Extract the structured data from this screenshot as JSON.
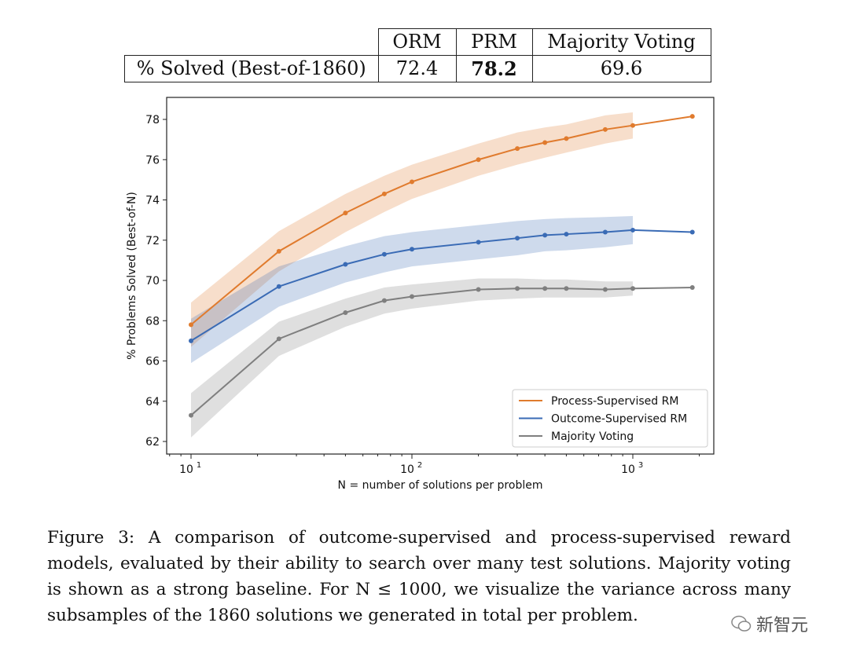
{
  "table": {
    "headers": [
      "",
      "ORM",
      "PRM",
      "Majority Voting"
    ],
    "row": {
      "label": "% Solved (Best-of-1860)",
      "values": [
        "72.4",
        "78.2",
        "69.6"
      ],
      "bold_index": 1
    }
  },
  "chart_data": {
    "type": "line",
    "xlabel": "N = number of solutions per problem",
    "ylabel": "% Problems Solved (Best-of-N)",
    "xscale": "log",
    "xlim": [
      8,
      2600
    ],
    "ylim": [
      61.5,
      78.9
    ],
    "xticks": [
      {
        "value": 10,
        "label": "10",
        "exp": "1"
      },
      {
        "value": 100,
        "label": "10",
        "exp": "2"
      },
      {
        "value": 1000,
        "label": "10",
        "exp": "3"
      }
    ],
    "yticks": [
      62,
      64,
      66,
      68,
      70,
      72,
      74,
      76,
      78
    ],
    "legend": "lower-right",
    "grid": false,
    "x": [
      10,
      25,
      50,
      75,
      100,
      200,
      300,
      400,
      500,
      750,
      1000,
      1860
    ],
    "series": [
      {
        "name": "Process-Supervised RM",
        "color": "#e07b2e",
        "values": [
          67.8,
          71.45,
          73.35,
          74.3,
          74.9,
          76.0,
          76.55,
          76.85,
          77.05,
          77.5,
          77.7,
          78.15
        ],
        "band_halfwidth": [
          1.1,
          1.0,
          0.95,
          0.9,
          0.85,
          0.8,
          0.8,
          0.75,
          0.7,
          0.7,
          0.65,
          null
        ]
      },
      {
        "name": "Outcome-Supervised RM",
        "color": "#3a6bb5",
        "values": [
          67.0,
          69.7,
          70.8,
          71.3,
          71.55,
          71.9,
          72.1,
          72.25,
          72.3,
          72.4,
          72.5,
          72.4
        ],
        "band_halfwidth": [
          1.1,
          1.0,
          0.9,
          0.9,
          0.85,
          0.85,
          0.85,
          0.8,
          0.8,
          0.75,
          0.7,
          null
        ]
      },
      {
        "name": "Majority Voting",
        "color": "#7f7f7f",
        "values": [
          63.3,
          67.1,
          68.4,
          69.0,
          69.2,
          69.55,
          69.6,
          69.6,
          69.6,
          69.55,
          69.6,
          69.65
        ],
        "band_halfwidth": [
          1.1,
          0.85,
          0.7,
          0.65,
          0.6,
          0.55,
          0.5,
          0.45,
          0.45,
          0.4,
          0.35,
          null
        ]
      }
    ]
  },
  "caption": "Figure 3: A comparison of outcome-supervised and process-supervised reward models, evaluated by their ability to search over many test solutions. Majority voting is shown as a strong baseline. For N ≤ 1000, we visualize the variance across many subsamples of the 1860 solutions we generated in total per problem.",
  "watermark": "新智元"
}
